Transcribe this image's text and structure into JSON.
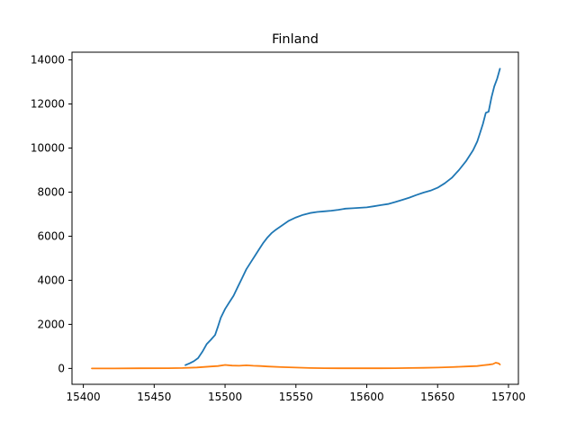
{
  "chart_data": {
    "type": "line",
    "title": "Finland",
    "xlabel": "",
    "ylabel": "",
    "xlim": [
      15392,
      15707
    ],
    "ylim": [
      -720,
      14350
    ],
    "x_ticks": [
      15400,
      15450,
      15500,
      15550,
      15600,
      15650,
      15700
    ],
    "y_ticks": [
      0,
      2000,
      4000,
      6000,
      8000,
      10000,
      12000,
      14000
    ],
    "grid": false,
    "legend": "none",
    "series": [
      {
        "color": "#1f77b4",
        "points": [
          [
            15472,
            150
          ],
          [
            15475,
            230
          ],
          [
            15478,
            330
          ],
          [
            15481,
            470
          ],
          [
            15484,
            760
          ],
          [
            15487,
            1100
          ],
          [
            15490,
            1300
          ],
          [
            15493,
            1520
          ],
          [
            15495,
            1900
          ],
          [
            15497,
            2300
          ],
          [
            15500,
            2700
          ],
          [
            15503,
            3000
          ],
          [
            15506,
            3300
          ],
          [
            15509,
            3700
          ],
          [
            15512,
            4100
          ],
          [
            15515,
            4500
          ],
          [
            15518,
            4800
          ],
          [
            15521,
            5100
          ],
          [
            15524,
            5400
          ],
          [
            15527,
            5700
          ],
          [
            15530,
            5950
          ],
          [
            15533,
            6150
          ],
          [
            15536,
            6300
          ],
          [
            15540,
            6480
          ],
          [
            15545,
            6700
          ],
          [
            15550,
            6850
          ],
          [
            15555,
            6970
          ],
          [
            15560,
            7050
          ],
          [
            15565,
            7100
          ],
          [
            15570,
            7130
          ],
          [
            15575,
            7160
          ],
          [
            15580,
            7200
          ],
          [
            15585,
            7250
          ],
          [
            15590,
            7270
          ],
          [
            15595,
            7290
          ],
          [
            15600,
            7310
          ],
          [
            15605,
            7360
          ],
          [
            15610,
            7410
          ],
          [
            15615,
            7460
          ],
          [
            15620,
            7550
          ],
          [
            15625,
            7650
          ],
          [
            15630,
            7750
          ],
          [
            15635,
            7870
          ],
          [
            15640,
            7980
          ],
          [
            15645,
            8070
          ],
          [
            15650,
            8200
          ],
          [
            15655,
            8400
          ],
          [
            15660,
            8650
          ],
          [
            15665,
            9000
          ],
          [
            15670,
            9400
          ],
          [
            15675,
            9900
          ],
          [
            15678,
            10300
          ],
          [
            15680,
            10700
          ],
          [
            15682,
            11100
          ],
          [
            15684,
            11600
          ],
          [
            15686,
            11650
          ],
          [
            15688,
            12300
          ],
          [
            15690,
            12800
          ],
          [
            15692,
            13150
          ],
          [
            15694,
            13600
          ]
        ]
      },
      {
        "color": "#ff7f0e",
        "points": [
          [
            15406,
            0
          ],
          [
            15420,
            0
          ],
          [
            15440,
            5
          ],
          [
            15460,
            10
          ],
          [
            15470,
            20
          ],
          [
            15480,
            45
          ],
          [
            15490,
            90
          ],
          [
            15495,
            110
          ],
          [
            15500,
            160
          ],
          [
            15505,
            130
          ],
          [
            15510,
            120
          ],
          [
            15515,
            140
          ],
          [
            15520,
            120
          ],
          [
            15525,
            110
          ],
          [
            15530,
            90
          ],
          [
            15540,
            60
          ],
          [
            15550,
            40
          ],
          [
            15560,
            20
          ],
          [
            15570,
            10
          ],
          [
            15580,
            8
          ],
          [
            15590,
            5
          ],
          [
            15600,
            5
          ],
          [
            15610,
            8
          ],
          [
            15620,
            12
          ],
          [
            15630,
            20
          ],
          [
            15640,
            28
          ],
          [
            15650,
            40
          ],
          [
            15660,
            60
          ],
          [
            15670,
            90
          ],
          [
            15678,
            110
          ],
          [
            15682,
            140
          ],
          [
            15686,
            170
          ],
          [
            15689,
            200
          ],
          [
            15691,
            260
          ],
          [
            15693,
            230
          ],
          [
            15694,
            180
          ]
        ]
      }
    ]
  }
}
